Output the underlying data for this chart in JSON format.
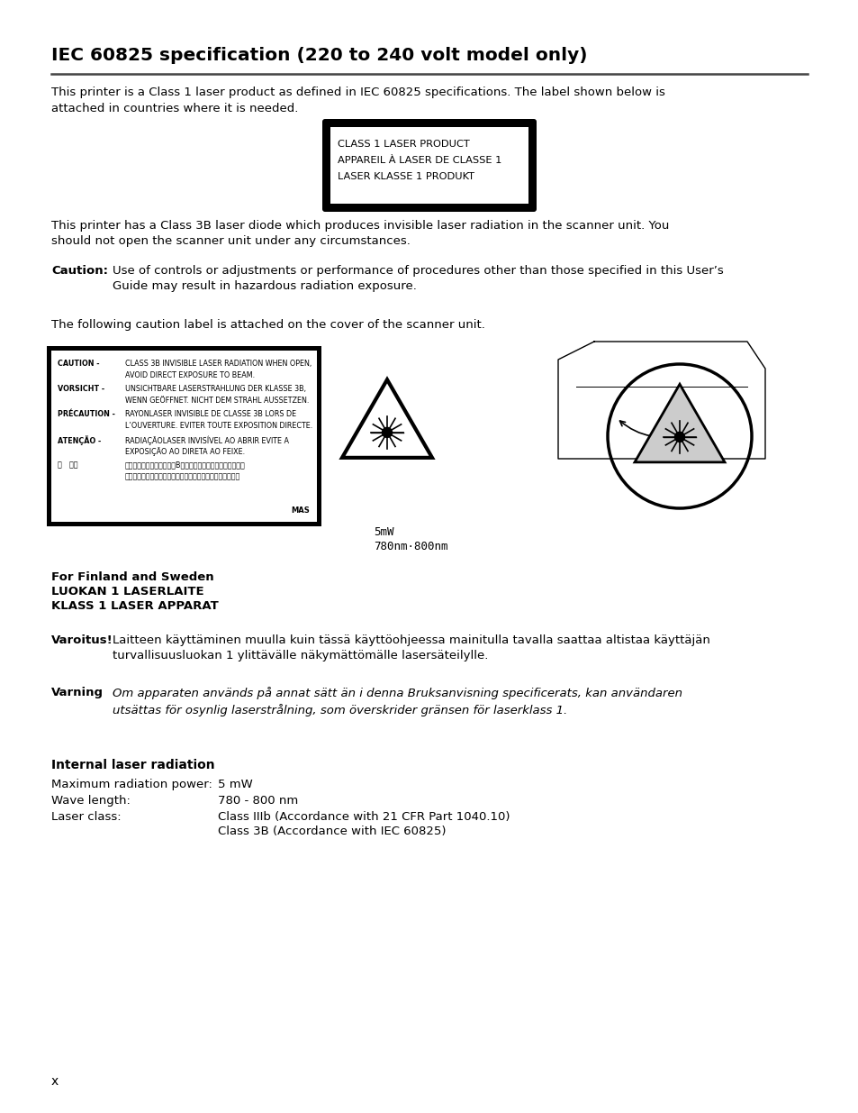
{
  "bg_color": "#ffffff",
  "title": "IEC 60825 specification (220 to 240 volt model only)",
  "body_text_1": "This printer is a Class 1 laser product as defined in IEC 60825 specifications. The label shown below is\nattached in countries where it is needed.",
  "label_box_lines": [
    "CLASS 1 LASER PRODUCT",
    "APPAREIL À LASER DE CLASSE 1",
    "LASER KLASSE 1 PRODUKT"
  ],
  "body_text_2": "This printer has a Class 3B laser diode which produces invisible laser radiation in the scanner unit. You\nshould not open the scanner unit under any circumstances.",
  "caution_label": "Caution:",
  "caution_text": "Use of controls or adjustments or performance of procedures other than those specified in this User’s\nGuide may result in hazardous radiation exposure.",
  "following_text": "The following caution label is attached on the cover of the scanner unit.",
  "finland_header": "For Finland and Sweden",
  "finland_lines": [
    "LUOKAN 1 LASERLAITE",
    "KLASS 1 LASER APPARAT"
  ],
  "varoitus_label": "Varoitus!",
  "varoitus_text": "Laitteen käyttäminen muulla kuin tässä käyttöohjeessa mainitulla tavalla saattaa altistaa käyttäjän\nturvallisuusluokan 1 ylittävälle näkymättömälle lasersäteilylle.",
  "varning_label": "Varning",
  "varning_text": "Om apparaten används på annat sätt än i denna Bruksanvisning specificerats, kan användaren\nutsättas för osynlig laserstrålning, som överskrider gränsen för laserklass 1.",
  "internal_header": "Internal laser radiation",
  "spec_rows": [
    [
      "Maximum radiation power:",
      "5 mW"
    ],
    [
      "Wave length:",
      "780 - 800 nm"
    ],
    [
      "Laser class:",
      "Class IIIb (Accordance with 21 CFR Part 1040.10)\nClass 3B (Accordance with IEC 60825)"
    ]
  ],
  "page_label": "x",
  "caution_box_data": [
    {
      "bold_part": "CAUTION",
      "dash": " - ",
      "text": "CLASS 3B INVISIBLE LASER RADIATION WHEN OPEN,\n         AVOID DIRECT EXPOSURE TO BEAM."
    },
    {
      "bold_part": "VORSICHT",
      "dash": " - ",
      "text": "UNSICHTBARE LASERSTRAHLUNG DER KLASSE 3B,\n         WENN GEÖFFNET. NICHT DEM STRAHL AUSSETZEN."
    },
    {
      "bold_part": "PRÉCAUTION",
      "dash": " - ",
      "text": "RAYONLASER INVISIBLE DE CLASSE 3B LORS DE\n         L’OUVERTURE. EVITER TOUTE EXPOSITION DIRECTE."
    },
    {
      "bold_part": "ATENÇÃO",
      "dash": " - ",
      "text": "RADIAÇÃOLASER INVISÍVEL AO ABRIR EVITE A\n         EXPOSIÇÃO AO DIRETA AO FEIXE."
    },
    {
      "bold_part": "注   意．",
      "dash": "  ",
      "text": "カバーを開けるとクラス３Bのレーザ勝射の危険があります。\n         レーザービームに直接当たらないように注意してください。"
    }
  ]
}
